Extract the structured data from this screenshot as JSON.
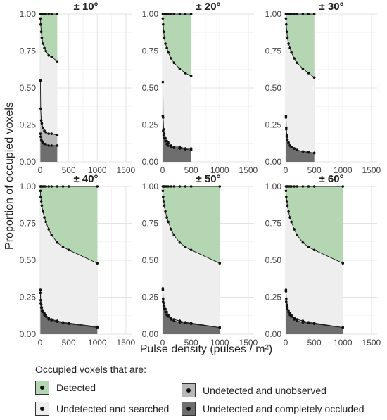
{
  "figure": {
    "y_axis_title": "Proportion of occupied voxels",
    "x_axis_title": "Pulse density (pulses / m²)"
  },
  "legend": {
    "title": "Occupied voxels that are:",
    "items": [
      {
        "label": "Detected",
        "color": "#b5d6b2"
      },
      {
        "label": "Undetected and searched",
        "color": "#eeeeee"
      },
      {
        "label": "Undetected and unobserved",
        "color": "#b8b8b8"
      },
      {
        "label": "Undetected and completely occluded",
        "color": "#6e6e6e"
      }
    ]
  },
  "chart_data": [
    {
      "type": "area",
      "title": "± 10°",
      "x_ticks": [
        "0",
        "500",
        "1000",
        "1500"
      ],
      "y_ticks": [
        "0.00",
        "0.25",
        "0.50",
        "0.75",
        "1.00"
      ],
      "xlim": [
        0,
        1600
      ],
      "ylim": [
        0,
        1
      ],
      "grid": true,
      "x": [
        5,
        10,
        20,
        30,
        50,
        75,
        100,
        150,
        200,
        300
      ],
      "series": [
        {
          "values": [
            1,
            1,
            1,
            1,
            1,
            1,
            1,
            1,
            1,
            1
          ],
          "color": "#b5d6b2"
        },
        {
          "values": [
            0.97,
            0.93,
            0.88,
            0.84,
            0.8,
            0.77,
            0.75,
            0.72,
            0.71,
            0.68
          ],
          "color": "#eeeeee"
        },
        {
          "values": [
            0.55,
            0.36,
            0.28,
            0.26,
            0.23,
            0.21,
            0.2,
            0.19,
            0.19,
            0.18
          ],
          "color": "#b8b8b8"
        },
        {
          "values": [
            0.19,
            0.17,
            0.15,
            0.14,
            0.13,
            0.12,
            0.12,
            0.11,
            0.11,
            0.11
          ],
          "color": "#6e6e6e"
        }
      ]
    },
    {
      "type": "area",
      "title": "± 20°",
      "x_ticks": [
        "0",
        "500",
        "1000",
        "1500"
      ],
      "y_ticks": [
        "0.00",
        "0.25",
        "0.50",
        "0.75",
        "1.00"
      ],
      "xlim": [
        0,
        1600
      ],
      "ylim": [
        0,
        1
      ],
      "grid": true,
      "x": [
        5,
        10,
        20,
        30,
        50,
        75,
        100,
        150,
        200,
        300,
        400,
        500
      ],
      "series": [
        {
          "values": [
            1,
            1,
            1,
            1,
            1,
            1,
            1,
            1,
            1,
            1,
            1,
            1
          ],
          "color": "#b5d6b2"
        },
        {
          "values": [
            0.97,
            0.93,
            0.88,
            0.84,
            0.8,
            0.77,
            0.74,
            0.7,
            0.67,
            0.63,
            0.6,
            0.58
          ],
          "color": "#eeeeee"
        },
        {
          "values": [
            0.54,
            0.3,
            0.22,
            0.19,
            0.16,
            0.14,
            0.13,
            0.11,
            0.1,
            0.1,
            0.09,
            0.09
          ],
          "color": "#b8b8b8"
        },
        {
          "values": [
            0.31,
            0.21,
            0.18,
            0.16,
            0.14,
            0.12,
            0.11,
            0.1,
            0.095,
            0.09,
            0.085,
            0.08
          ],
          "color": "#6e6e6e"
        }
      ]
    },
    {
      "type": "area",
      "title": "± 30°",
      "x_ticks": [
        "0",
        "500",
        "1000",
        "1500"
      ],
      "y_ticks": [
        "0.00",
        "0.25",
        "0.50",
        "0.75",
        "1.00"
      ],
      "xlim": [
        0,
        1600
      ],
      "ylim": [
        0,
        1
      ],
      "grid": true,
      "x": [
        5,
        10,
        20,
        30,
        50,
        75,
        100,
        150,
        200,
        300,
        400,
        500
      ],
      "series": [
        {
          "values": [
            1,
            1,
            1,
            1,
            1,
            1,
            1,
            1,
            1,
            1,
            1,
            1
          ],
          "color": "#b5d6b2"
        },
        {
          "values": [
            0.97,
            0.93,
            0.88,
            0.84,
            0.8,
            0.77,
            0.74,
            0.7,
            0.67,
            0.63,
            0.6,
            0.57
          ],
          "color": "#eeeeee"
        },
        {
          "values": [
            0.31,
            0.23,
            0.18,
            0.15,
            0.13,
            0.11,
            0.1,
            0.09,
            0.08,
            0.07,
            0.065,
            0.06
          ],
          "color": "#b8b8b8"
        },
        {
          "values": [
            0.3,
            0.22,
            0.17,
            0.15,
            0.13,
            0.11,
            0.1,
            0.09,
            0.08,
            0.07,
            0.063,
            0.06
          ],
          "color": "#6e6e6e"
        }
      ]
    },
    {
      "type": "area",
      "title": "± 40°",
      "x_ticks": [
        "0",
        "500",
        "1000",
        "1500"
      ],
      "y_ticks": [
        "0.00",
        "0.25",
        "0.50",
        "0.75",
        "1.00"
      ],
      "xlim": [
        0,
        1600
      ],
      "ylim": [
        0,
        1
      ],
      "grid": true,
      "x": [
        5,
        10,
        20,
        30,
        50,
        75,
        100,
        150,
        200,
        300,
        400,
        500,
        1000
      ],
      "series": [
        {
          "values": [
            1,
            1,
            1,
            1,
            1,
            1,
            1,
            1,
            1,
            1,
            1,
            1,
            1
          ],
          "color": "#b5d6b2"
        },
        {
          "values": [
            0.97,
            0.93,
            0.9,
            0.87,
            0.83,
            0.79,
            0.76,
            0.71,
            0.67,
            0.62,
            0.59,
            0.57,
            0.48
          ],
          "color": "#eeeeee"
        },
        {
          "values": [
            0.3,
            0.23,
            0.2,
            0.18,
            0.16,
            0.14,
            0.13,
            0.11,
            0.1,
            0.09,
            0.08,
            0.075,
            0.05
          ],
          "color": "#b8b8b8"
        },
        {
          "values": [
            0.28,
            0.21,
            0.18,
            0.16,
            0.15,
            0.13,
            0.12,
            0.1,
            0.095,
            0.085,
            0.077,
            0.07,
            0.045
          ],
          "color": "#6e6e6e"
        }
      ]
    },
    {
      "type": "area",
      "title": "± 50°",
      "x_ticks": [
        "0",
        "500",
        "1000",
        "1500"
      ],
      "y_ticks": [
        "0.00",
        "0.25",
        "0.50",
        "0.75",
        "1.00"
      ],
      "xlim": [
        0,
        1600
      ],
      "ylim": [
        0,
        1
      ],
      "grid": true,
      "x": [
        5,
        10,
        20,
        30,
        50,
        75,
        100,
        150,
        200,
        300,
        400,
        500,
        1000
      ],
      "series": [
        {
          "values": [
            1,
            1,
            1,
            1,
            1,
            1,
            1,
            1,
            1,
            1,
            1,
            1,
            1
          ],
          "color": "#b5d6b2"
        },
        {
          "values": [
            0.97,
            0.93,
            0.9,
            0.87,
            0.83,
            0.79,
            0.76,
            0.71,
            0.67,
            0.62,
            0.59,
            0.57,
            0.48
          ],
          "color": "#eeeeee"
        },
        {
          "values": [
            0.31,
            0.24,
            0.21,
            0.19,
            0.17,
            0.15,
            0.13,
            0.11,
            0.1,
            0.09,
            0.08,
            0.075,
            0.045
          ],
          "color": "#b8b8b8"
        },
        {
          "values": [
            0.3,
            0.22,
            0.19,
            0.17,
            0.15,
            0.13,
            0.12,
            0.1,
            0.09,
            0.08,
            0.075,
            0.07,
            0.045
          ],
          "color": "#6e6e6e"
        }
      ]
    },
    {
      "type": "area",
      "title": "± 60°",
      "x_ticks": [
        "0",
        "500",
        "1000",
        "1500"
      ],
      "y_ticks": [
        "0.00",
        "0.25",
        "0.50",
        "0.75",
        "1.00"
      ],
      "xlim": [
        0,
        1600
      ],
      "ylim": [
        0,
        1
      ],
      "grid": true,
      "x": [
        5,
        10,
        20,
        30,
        50,
        75,
        100,
        150,
        200,
        300,
        400,
        500,
        1000
      ],
      "series": [
        {
          "values": [
            1,
            1,
            1,
            1,
            1,
            1,
            1,
            1,
            1,
            1,
            1,
            1,
            1
          ],
          "color": "#b5d6b2"
        },
        {
          "values": [
            0.97,
            0.93,
            0.9,
            0.87,
            0.83,
            0.79,
            0.76,
            0.71,
            0.67,
            0.62,
            0.59,
            0.57,
            0.48
          ],
          "color": "#eeeeee"
        },
        {
          "values": [
            0.3,
            0.24,
            0.2,
            0.18,
            0.16,
            0.14,
            0.13,
            0.11,
            0.1,
            0.09,
            0.08,
            0.075,
            0.045
          ],
          "color": "#b8b8b8"
        },
        {
          "values": [
            0.29,
            0.22,
            0.19,
            0.17,
            0.15,
            0.13,
            0.12,
            0.1,
            0.09,
            0.08,
            0.075,
            0.07,
            0.045
          ],
          "color": "#6e6e6e"
        }
      ]
    }
  ]
}
